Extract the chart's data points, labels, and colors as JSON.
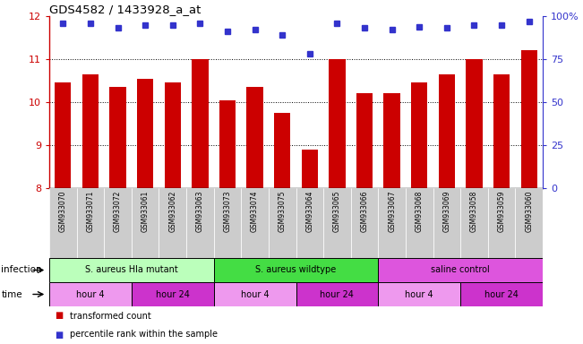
{
  "title": "GDS4582 / 1433928_a_at",
  "samples": [
    "GSM933070",
    "GSM933071",
    "GSM933072",
    "GSM933061",
    "GSM933062",
    "GSM933063",
    "GSM933073",
    "GSM933074",
    "GSM933075",
    "GSM933064",
    "GSM933065",
    "GSM933066",
    "GSM933067",
    "GSM933068",
    "GSM933069",
    "GSM933058",
    "GSM933059",
    "GSM933060"
  ],
  "bar_values": [
    10.45,
    10.65,
    10.35,
    10.55,
    10.45,
    11.0,
    10.05,
    10.35,
    9.75,
    8.9,
    11.0,
    10.2,
    10.2,
    10.45,
    10.65,
    11.0,
    10.65,
    11.2
  ],
  "percentile_values": [
    96,
    96,
    93,
    95,
    95,
    96,
    91,
    92,
    89,
    78,
    96,
    93,
    92,
    94,
    93,
    95,
    95,
    97
  ],
  "bar_color": "#cc0000",
  "percentile_color": "#3333cc",
  "ylim": [
    8,
    12
  ],
  "yticks": [
    8,
    9,
    10,
    11,
    12
  ],
  "right_yticks": [
    0,
    25,
    50,
    75,
    100
  ],
  "right_ylabels": [
    "0",
    "25",
    "50",
    "75",
    "100%"
  ],
  "grid_lines": [
    9,
    10,
    11
  ],
  "infection_groups": [
    {
      "label": "S. aureus Hla mutant",
      "start": 0,
      "end": 6,
      "color": "#bbffbb"
    },
    {
      "label": "S. aureus wildtype",
      "start": 6,
      "end": 12,
      "color": "#44dd44"
    },
    {
      "label": "saline control",
      "start": 12,
      "end": 18,
      "color": "#dd55dd"
    }
  ],
  "time_groups": [
    {
      "label": "hour 4",
      "start": 0,
      "end": 3,
      "color": "#ee99ee"
    },
    {
      "label": "hour 24",
      "start": 3,
      "end": 6,
      "color": "#cc33cc"
    },
    {
      "label": "hour 4",
      "start": 6,
      "end": 9,
      "color": "#ee99ee"
    },
    {
      "label": "hour 24",
      "start": 9,
      "end": 12,
      "color": "#cc33cc"
    },
    {
      "label": "hour 4",
      "start": 12,
      "end": 15,
      "color": "#ee99ee"
    },
    {
      "label": "hour 24",
      "start": 15,
      "end": 18,
      "color": "#cc33cc"
    }
  ],
  "legend_items": [
    {
      "label": "transformed count",
      "color": "#cc0000"
    },
    {
      "label": "percentile rank within the sample",
      "color": "#3333cc"
    }
  ],
  "infection_label": "infection",
  "time_label": "time",
  "bg_color": "#ffffff",
  "sample_bg_color": "#cccccc"
}
